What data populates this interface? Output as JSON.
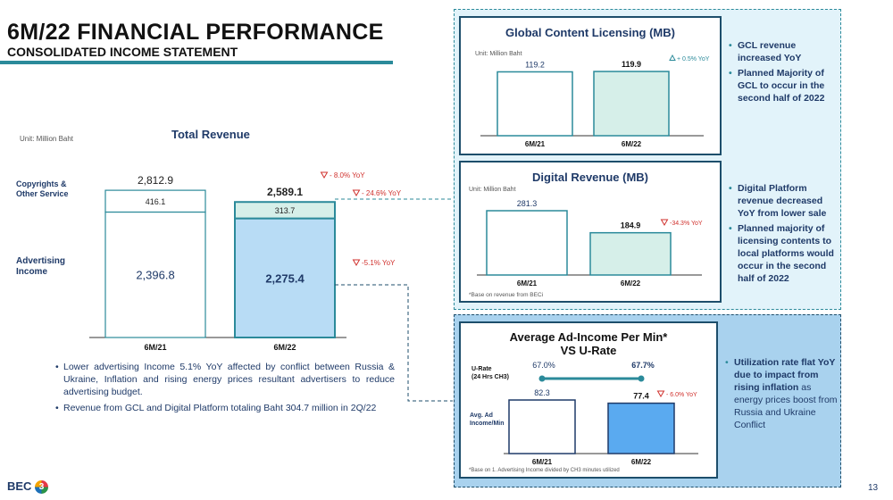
{
  "header": {
    "title": "6M/22 FINANCIAL PERFORMANCE",
    "subtitle": "CONSOLIDATED INCOME STATEMENT"
  },
  "left_chart": {
    "unit": "Unit: Million Baht",
    "title": "Total Revenue",
    "row_label_top": "Copyrights & Other Service",
    "row_label_bottom": "Advertising Income",
    "total_21": "2,812.9",
    "total_22": "2,589.1",
    "total_yoy": "- 8.0% YoY",
    "copyright_yoy": "- 24.6% YoY",
    "advertising_yoy": "-5.1% YoY",
    "bullets": [
      "Lower advertising Income 5.1% YoY affected by conflict between Russia & Ukraine, Inflation and rising energy prices resultant advertisers to reduce advertising budget.",
      "Revenue from GCL and Digital Platform totaling Baht 304.7 million in 2Q/22"
    ]
  },
  "gcl": {
    "title": "Global Content Licensing (MB)",
    "unit": "Unit: Million Baht",
    "yoy": "+ 0.5% YoY",
    "bullets": [
      "GCL revenue increased YoY",
      "Planned Majority of GCL to occur in the second half of 2022"
    ]
  },
  "digital": {
    "title": "Digital Revenue (MB)",
    "unit": "Unit: Million Baht",
    "yoy": "-34.3% YoY",
    "note": "*Base on revenue from BECi",
    "bullets": [
      "Digital Platform revenue decreased YoY from lower sale",
      "Planned majority of licensing contents to local platforms would occur in the second half of 2022"
    ]
  },
  "adincome": {
    "title_line1": "Average Ad-Income Per Min*",
    "title_line2": "VS U-Rate",
    "urate_label_1": "U-Rate",
    "urate_label_2": "(24 Hrs CH3)",
    "avg_label_1": "Avg. Ad",
    "avg_label_2": "Income/Min",
    "yoy": "- 6.0% YoY",
    "note": "*Base on 1.  Advertising Income divided by CH3 minutes utilized",
    "bullet_bold": "Utilization rate flat YoY due to impact from rising inflation",
    "bullet_rest": " as energy prices boost from Russia and Ukraine Conflict"
  },
  "footer": {
    "logo": "BEC",
    "logo_badge": "3",
    "page": "13"
  },
  "colors": {
    "navy": "#1f3a68",
    "teal": "#2b8a9a",
    "light_blue": "#b8dcf5",
    "mid_blue": "#5aaaf0",
    "panel_bg": "#e2f3fa",
    "red": "#d0312d"
  },
  "chart_data": [
    {
      "type": "bar",
      "title": "Total Revenue",
      "categories": [
        "6M/21",
        "6M/22"
      ],
      "series": [
        {
          "name": "Advertising Income",
          "values": [
            2396.8,
            2275.4
          ],
          "labels": [
            "2,396.8",
            "2,275.4"
          ]
        },
        {
          "name": "Copyrights & Other Service",
          "values": [
            416.1,
            313.7
          ],
          "labels": [
            "416.1",
            "313.7"
          ]
        }
      ],
      "totals": [
        2812.9,
        2589.1
      ]
    },
    {
      "type": "bar",
      "title": "Global Content Licensing (MB)",
      "categories": [
        "6M/21",
        "6M/22"
      ],
      "values": [
        119.2,
        119.9
      ],
      "labels": [
        "119.2",
        "119.9"
      ]
    },
    {
      "type": "bar",
      "title": "Digital Revenue (MB)",
      "categories": [
        "6M/21",
        "6M/22"
      ],
      "values": [
        281.3,
        184.9
      ],
      "labels": [
        "281.3",
        "184.9"
      ]
    },
    {
      "type": "bar",
      "title": "Average Ad-Income Per Min* VS U-Rate",
      "categories": [
        "6M/21",
        "6M/22"
      ],
      "values": [
        82.3,
        77.4
      ],
      "labels": [
        "82.3",
        "77.4"
      ],
      "line": {
        "values": [
          67.0,
          67.7
        ],
        "labels": [
          "67.0%",
          "67.7%"
        ]
      }
    }
  ]
}
